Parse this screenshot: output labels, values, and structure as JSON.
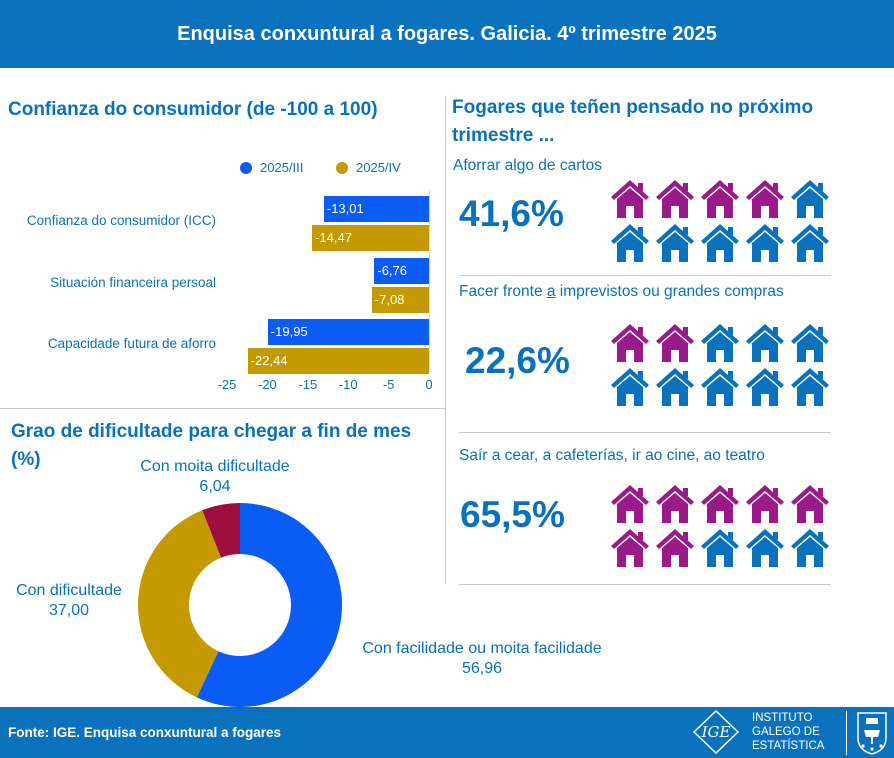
{
  "header": {
    "title": "Enquisa conxuntural a fogares. Galicia. 4º trimestre 2025"
  },
  "confidence": {
    "title": "Confianza do consumidor (de -100 a 100)",
    "chart_data": {
      "type": "bar",
      "orientation": "horizontal",
      "categories": [
        "Confianza do consumidor (ICC)",
        "Situación financeira persoal",
        "Capacidade futura de aforro"
      ],
      "series": [
        {
          "name": "2025/III",
          "color": "#0a5cf5",
          "values": [
            -13.01,
            -6.76,
            -19.95
          ],
          "labels": [
            "-13,01",
            "-6,76",
            "-19,95"
          ]
        },
        {
          "name": "2025/IV",
          "color": "#c49a00",
          "values": [
            -14.47,
            -7.08,
            -22.44
          ],
          "labels": [
            "-14,47",
            "-7,08",
            "-22,44"
          ]
        }
      ],
      "xlim": [
        -25,
        0
      ],
      "ticks": [
        -25,
        -20,
        -15,
        -10,
        -5,
        0
      ],
      "tick_labels": [
        "-25",
        "-20",
        "-15",
        "-10",
        "-5",
        "0"
      ],
      "grid": false,
      "legend": "top"
    }
  },
  "difficulty": {
    "title": "Grao de dificultade para chegar a fin de mes (%)",
    "chart_data": {
      "type": "pie",
      "donut": true,
      "slices": [
        {
          "label": "Con facilidade ou moita facilidade",
          "value": 56.96,
          "value_label": "56,96",
          "color": "#0a5cf5"
        },
        {
          "label": "Con dificultade",
          "value": 37.0,
          "value_label": "37,00",
          "color": "#c49a00"
        },
        {
          "label": "Con moita dificultade",
          "value": 6.04,
          "value_label": "6,04",
          "color": "#9e0e3e"
        }
      ]
    }
  },
  "plans": {
    "title": "Fogares que teñen pensado no próximo trimestre  ...",
    "colors": {
      "filled": "#9a1a8a",
      "empty": "#0a72bd"
    },
    "items": [
      {
        "label": "Aforrar algo de cartos",
        "value": "41,6%",
        "percent": 41.6,
        "filled_houses": 4,
        "total_houses": 10
      },
      {
        "label_parts": [
          "Facer fronte ",
          "a",
          " imprevistos ou grandes compras"
        ],
        "value": "22,6%",
        "percent": 22.6,
        "filled_houses": 2,
        "total_houses": 10
      },
      {
        "label": "Saír a cear, a cafeterías, ir ao cine, ao teatro",
        "value": "65,5%",
        "percent": 65.5,
        "filled_houses": 7,
        "total_houses": 10
      }
    ]
  },
  "footer": {
    "source": "Fonte: IGE. Enquisa conxuntural a fogares",
    "logo_lines": [
      "INSTITUTO",
      "GALEGO DE",
      "ESTATÍSTICA"
    ],
    "logo_mark": "IGE"
  }
}
